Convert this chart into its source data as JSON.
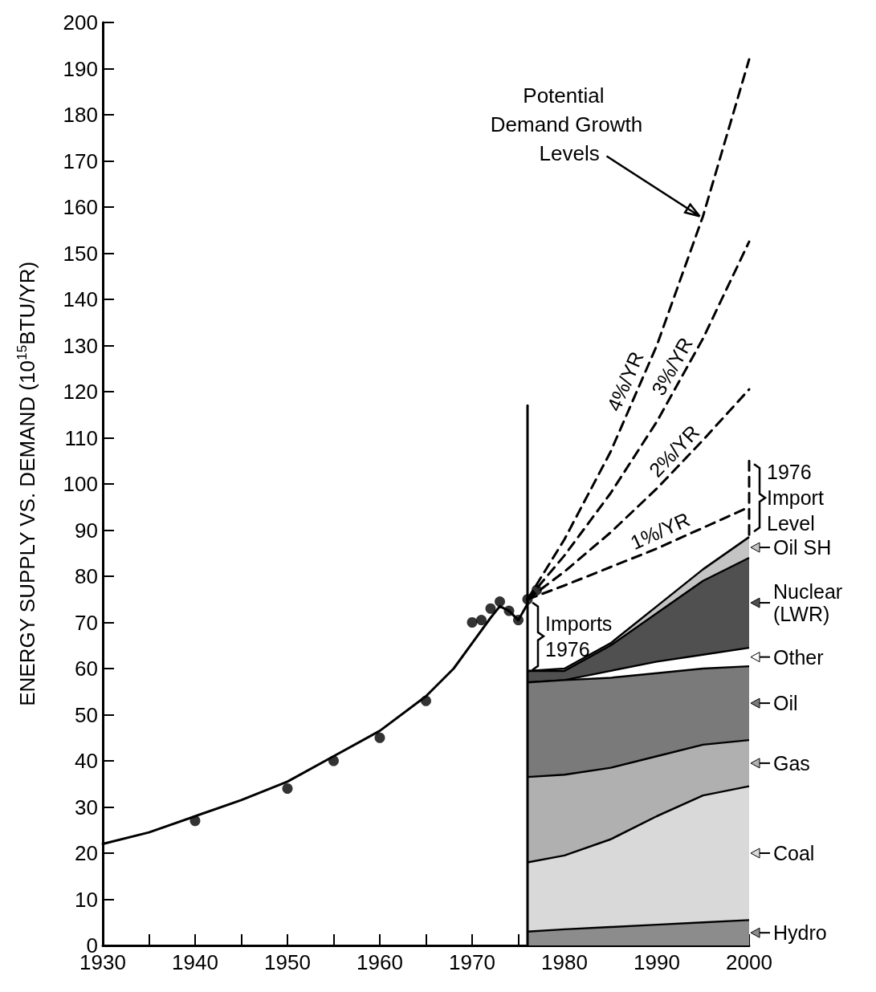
{
  "chart_data": {
    "type": "line",
    "ylabel": "ENERGY SUPPLY VS. DEMAND (10$^{15}$BTU/YR)",
    "xlim": [
      1930,
      2000
    ],
    "xticks": [
      1930,
      {
        "value": 1935,
        "label": null
      },
      1940,
      {
        "value": 1945,
        "label": null
      },
      1950,
      {
        "value": 1955,
        "label": null
      },
      1960,
      {
        "value": 1965,
        "label": null
      },
      1970,
      {
        "value": 1975,
        "label": null
      },
      1980,
      {
        "value": 1985,
        "label": null
      },
      1990,
      {
        "value": 1995,
        "label": null
      },
      2000
    ],
    "ylim": [
      0,
      200
    ],
    "yticks": [
      0,
      10,
      20,
      30,
      40,
      50,
      60,
      70,
      80,
      90,
      100,
      110,
      120,
      130,
      140,
      150,
      160,
      170,
      180,
      190,
      200
    ],
    "stacked": true,
    "legend": "right",
    "annotations": [
      {
        "text": "Potential Demand Growth Levels",
        "x": 1995,
        "y": 158
      },
      {
        "text": "4%/YR",
        "x": 1988,
        "y": 121
      },
      {
        "text": "3%/YR",
        "x": 1993,
        "y": 124
      },
      {
        "text": "2%/YR",
        "x": 1993,
        "y": 105
      },
      {
        "text": "1%/YR",
        "x": 1991,
        "y": 87
      },
      {
        "text": "Imports 1976",
        "x": 1976,
        "y": 67
      },
      {
        "text": "1976 Import Level",
        "x": 2000,
        "y": 97
      }
    ],
    "series": [
      {
        "type": "scatter",
        "marker": "circle",
        "color": "#000000",
        "x": [
          1940,
          1950,
          1955,
          1960,
          1965,
          1970,
          1971,
          1972,
          1973,
          1974,
          1975,
          1976,
          1977
        ],
        "values": [
          27,
          34,
          40,
          45,
          53,
          70,
          70.5,
          73,
          74.5,
          72.5,
          70.5,
          75,
          77
        ]
      },
      {
        "color": "#000000",
        "x": [
          1930,
          1935,
          1940,
          1945,
          1950,
          1955,
          1960,
          1965,
          1968,
          1970,
          1972,
          1973,
          1974,
          1975,
          1976
        ],
        "values": [
          22,
          24.5,
          28,
          31.5,
          35.5,
          41,
          46.5,
          54,
          60,
          65.5,
          71,
          73.5,
          72.5,
          70.5,
          74
        ]
      },
      {
        "color": "#000000",
        "x": [
          1976,
          1976
        ],
        "values": [
          0,
          117
        ]
      },
      {
        "type": "area",
        "name": "Hydro",
        "color": "#8c8c8c",
        "x": [
          1976,
          1980,
          1985,
          1990,
          1995,
          2000
        ],
        "values": [
          3,
          3.5,
          4,
          4.5,
          5,
          5.5
        ]
      },
      {
        "type": "area",
        "name": "Coal",
        "color": "#d9d9d9",
        "x": [
          1976,
          1980,
          1985,
          1990,
          1995,
          2000
        ],
        "values": [
          15,
          16,
          19,
          23.5,
          27.5,
          29
        ]
      },
      {
        "type": "area",
        "name": "Gas",
        "color": "#b0b0b0",
        "x": [
          1976,
          1980,
          1985,
          1990,
          1995,
          2000
        ],
        "values": [
          18.5,
          17.5,
          15.5,
          13,
          11,
          10
        ]
      },
      {
        "type": "area",
        "name": "Oil",
        "color": "#7a7a7a",
        "x": [
          1976,
          1980,
          1985,
          1990,
          1995,
          2000
        ],
        "values": [
          20.5,
          20.5,
          19.5,
          18,
          16.5,
          16
        ]
      },
      {
        "type": "area",
        "name": "Other",
        "color": "#ffffff",
        "x": [
          1976,
          1980,
          1985,
          1990,
          1995,
          2000
        ],
        "values": [
          0,
          0,
          1.5,
          2.5,
          3,
          4
        ]
      },
      {
        "type": "area",
        "name": "Nuclear (LWR)",
        "color": "#505050",
        "x": [
          1976,
          1980,
          1985,
          1990,
          1995,
          2000
        ],
        "values": [
          2.5,
          2,
          5.5,
          10.5,
          16,
          19.5
        ]
      },
      {
        "type": "area",
        "name": "Oil SH",
        "color": "#c4c4c4",
        "x": [
          1976,
          1980,
          1985,
          1990,
          1995,
          2000
        ],
        "values": [
          0,
          0.5,
          0.5,
          1.5,
          2.5,
          4.5
        ]
      },
      {
        "line_style": "dashed",
        "color": "#000000",
        "x": [
          1976,
          1980,
          1985,
          1990,
          1995,
          2000
        ],
        "values": [
          75,
          88,
          107,
          130,
          158,
          192
        ]
      },
      {
        "line_style": "dashed",
        "color": "#000000",
        "x": [
          1976,
          1980,
          1985,
          1990,
          1995,
          2000
        ],
        "values": [
          75,
          84.5,
          98,
          113.5,
          131.5,
          152.5
        ]
      },
      {
        "line_style": "dashed",
        "color": "#000000",
        "x": [
          1976,
          1980,
          1985,
          1990,
          1995,
          2000
        ],
        "values": [
          75,
          81,
          89.5,
          99,
          109.5,
          120.5
        ]
      },
      {
        "line_style": "dashed",
        "color": "#000000",
        "x": [
          1976,
          1980,
          1985,
          1990,
          1995,
          2000
        ],
        "values": [
          75,
          78,
          82,
          86,
          90.5,
          95
        ]
      },
      {
        "line_style": "dashed",
        "color": "#000000",
        "x": [
          2000,
          2000
        ],
        "values": [
          89,
          105
        ]
      }
    ]
  }
}
